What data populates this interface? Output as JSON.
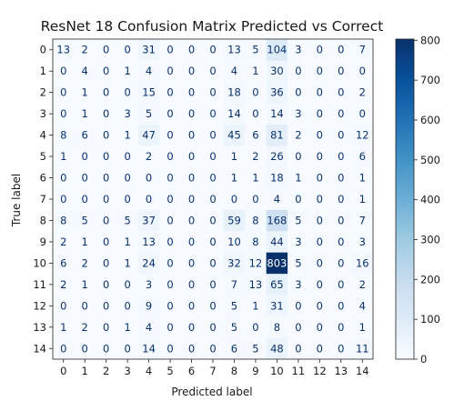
{
  "chart_data": {
    "type": "heatmap",
    "title": "ResNet 18 Confusion Matrix Predicted vs Correct",
    "xlabel": "Predicted label",
    "ylabel": "True label",
    "x_ticks": [
      "0",
      "1",
      "2",
      "3",
      "4",
      "5",
      "6",
      "7",
      "8",
      "9",
      "10",
      "11",
      "12",
      "13",
      "14"
    ],
    "y_ticks": [
      "0",
      "1",
      "2",
      "3",
      "4",
      "5",
      "6",
      "7",
      "8",
      "9",
      "10",
      "11",
      "12",
      "13",
      "14"
    ],
    "matrix": [
      [
        13,
        2,
        0,
        0,
        31,
        0,
        0,
        0,
        13,
        5,
        104,
        3,
        0,
        0,
        7
      ],
      [
        0,
        4,
        0,
        1,
        4,
        0,
        0,
        0,
        4,
        1,
        30,
        0,
        0,
        0,
        0
      ],
      [
        0,
        1,
        0,
        0,
        15,
        0,
        0,
        0,
        18,
        0,
        36,
        0,
        0,
        0,
        2
      ],
      [
        0,
        1,
        0,
        3,
        5,
        0,
        0,
        0,
        14,
        0,
        14,
        3,
        0,
        0,
        0
      ],
      [
        8,
        6,
        0,
        1,
        47,
        0,
        0,
        0,
        45,
        6,
        81,
        2,
        0,
        0,
        12
      ],
      [
        1,
        0,
        0,
        0,
        2,
        0,
        0,
        0,
        1,
        2,
        26,
        0,
        0,
        0,
        6
      ],
      [
        0,
        0,
        0,
        0,
        0,
        0,
        0,
        0,
        1,
        1,
        18,
        1,
        0,
        0,
        1
      ],
      [
        0,
        0,
        0,
        0,
        0,
        0,
        0,
        0,
        0,
        0,
        4,
        0,
        0,
        0,
        1
      ],
      [
        8,
        5,
        0,
        5,
        37,
        0,
        0,
        0,
        59,
        8,
        168,
        5,
        0,
        0,
        7
      ],
      [
        2,
        1,
        0,
        1,
        13,
        0,
        0,
        0,
        10,
        8,
        44,
        3,
        0,
        0,
        3
      ],
      [
        6,
        2,
        0,
        1,
        24,
        0,
        0,
        0,
        32,
        12,
        803,
        5,
        0,
        0,
        16
      ],
      [
        2,
        1,
        0,
        0,
        3,
        0,
        0,
        0,
        7,
        13,
        65,
        3,
        0,
        0,
        2
      ],
      [
        0,
        0,
        0,
        0,
        9,
        0,
        0,
        0,
        5,
        1,
        31,
        0,
        0,
        0,
        4
      ],
      [
        1,
        2,
        0,
        1,
        4,
        0,
        0,
        0,
        5,
        0,
        8,
        0,
        0,
        0,
        1
      ],
      [
        0,
        0,
        0,
        0,
        14,
        0,
        0,
        0,
        6,
        5,
        48,
        0,
        0,
        0,
        11
      ]
    ],
    "colormap": "Blues",
    "colorbar": {
      "range": [
        0,
        803
      ],
      "ticks": [
        0,
        100,
        200,
        300,
        400,
        500,
        600,
        700,
        800
      ]
    },
    "grid": false
  }
}
